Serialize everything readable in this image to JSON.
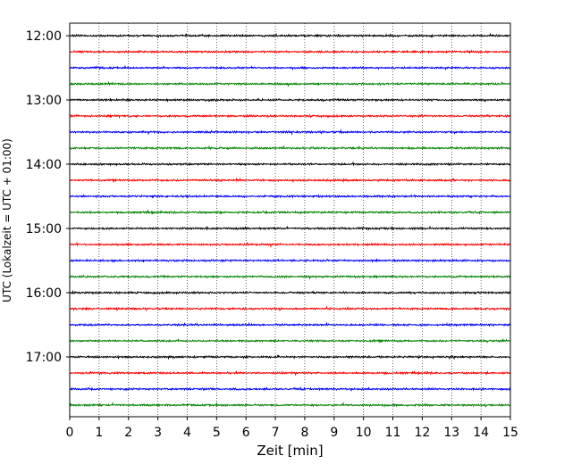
{
  "chart_data": {
    "type": "line",
    "title": "",
    "xlabel": "Zeit  [min]",
    "ylabel": "UTC (Lokalzeit = UTC + 01:00)",
    "xlim": [
      0,
      15
    ],
    "x_ticks": [
      "0",
      "1",
      "2",
      "3",
      "4",
      "5",
      "6",
      "7",
      "8",
      "9",
      "10",
      "11",
      "12",
      "13",
      "14",
      "15"
    ],
    "y_ticks": [
      "12:00",
      "13:00",
      "14:00",
      "15:00",
      "16:00",
      "17:00"
    ],
    "grid": "vertical dotted lines at each minute",
    "trace_colors": [
      "#000000",
      "#ff0000",
      "#0000ff",
      "#008000"
    ],
    "rows": [
      {
        "start": "12:00",
        "color": "#000000"
      },
      {
        "start": "12:15",
        "color": "#ff0000"
      },
      {
        "start": "12:30",
        "color": "#0000ff"
      },
      {
        "start": "12:45",
        "color": "#008000"
      },
      {
        "start": "13:00",
        "color": "#000000"
      },
      {
        "start": "13:15",
        "color": "#ff0000"
      },
      {
        "start": "13:30",
        "color": "#0000ff"
      },
      {
        "start": "13:45",
        "color": "#008000"
      },
      {
        "start": "14:00",
        "color": "#000000"
      },
      {
        "start": "14:15",
        "color": "#ff0000"
      },
      {
        "start": "14:30",
        "color": "#0000ff"
      },
      {
        "start": "14:45",
        "color": "#008000"
      },
      {
        "start": "15:00",
        "color": "#000000"
      },
      {
        "start": "15:15",
        "color": "#ff0000"
      },
      {
        "start": "15:30",
        "color": "#0000ff"
      },
      {
        "start": "15:45",
        "color": "#008000"
      },
      {
        "start": "16:00",
        "color": "#000000"
      },
      {
        "start": "16:15",
        "color": "#ff0000"
      },
      {
        "start": "16:30",
        "color": "#0000ff"
      },
      {
        "start": "16:45",
        "color": "#008000"
      },
      {
        "start": "17:00",
        "color": "#000000"
      },
      {
        "start": "17:15",
        "color": "#ff0000"
      },
      {
        "start": "17:30",
        "color": "#0000ff"
      },
      {
        "start": "17:45",
        "color": "#008000"
      }
    ]
  }
}
